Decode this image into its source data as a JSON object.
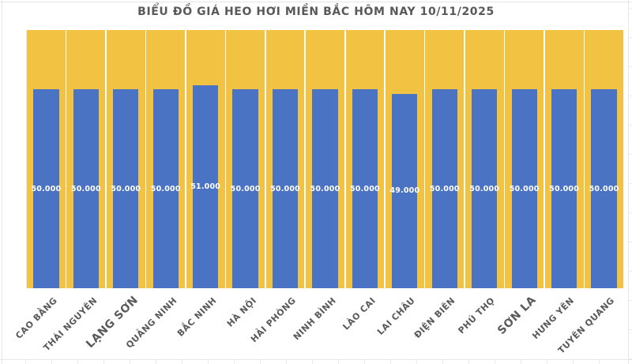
{
  "chart_data": {
    "type": "bar",
    "title": "BIỂU ĐỒ GIÁ HEO HƠI MIỀN BẮC HÔM NAY 10/11/2025",
    "categories": [
      "CAO BẰNG",
      "THÁI NGUYÊN",
      "LẠNG SƠN",
      "QUẢNG NINH",
      "BẮC NINH",
      "HÀ NỘI",
      "HẢI PHÒNG",
      "NINH BÌNH",
      "LÀO CAI",
      "LAI CHÂU",
      "ĐIỆN BIÊN",
      "PHÚ THỌ",
      "SƠN LA",
      "HƯNG YÊN",
      "TUYÊN QUANG"
    ],
    "values": [
      50000,
      50000,
      50000,
      50000,
      51000,
      50000,
      50000,
      50000,
      50000,
      49000,
      50000,
      50000,
      50000,
      50000,
      50000
    ],
    "data_labels": [
      "50.000",
      "50.000",
      "50.000",
      "50.000",
      "51.000",
      "50.000",
      "50.000",
      "50.000",
      "50.000",
      "49.000",
      "50.000",
      "50.000",
      "50.000",
      "50.000",
      "50.000"
    ],
    "emphasized_categories": [
      "LẠNG SƠN",
      "SƠN LA"
    ],
    "xlabel": "",
    "ylabel": "",
    "ylim": [
      0,
      65000
    ],
    "y_axis_visible": false,
    "grid": "white vertical separators between category columns",
    "legend_position": "none",
    "colors": {
      "bar": "#4b73c4",
      "column_background": "#f2c243",
      "value_label_text": "#ffffff",
      "title_text": "#595959",
      "axis_label_text": "#595959"
    }
  }
}
